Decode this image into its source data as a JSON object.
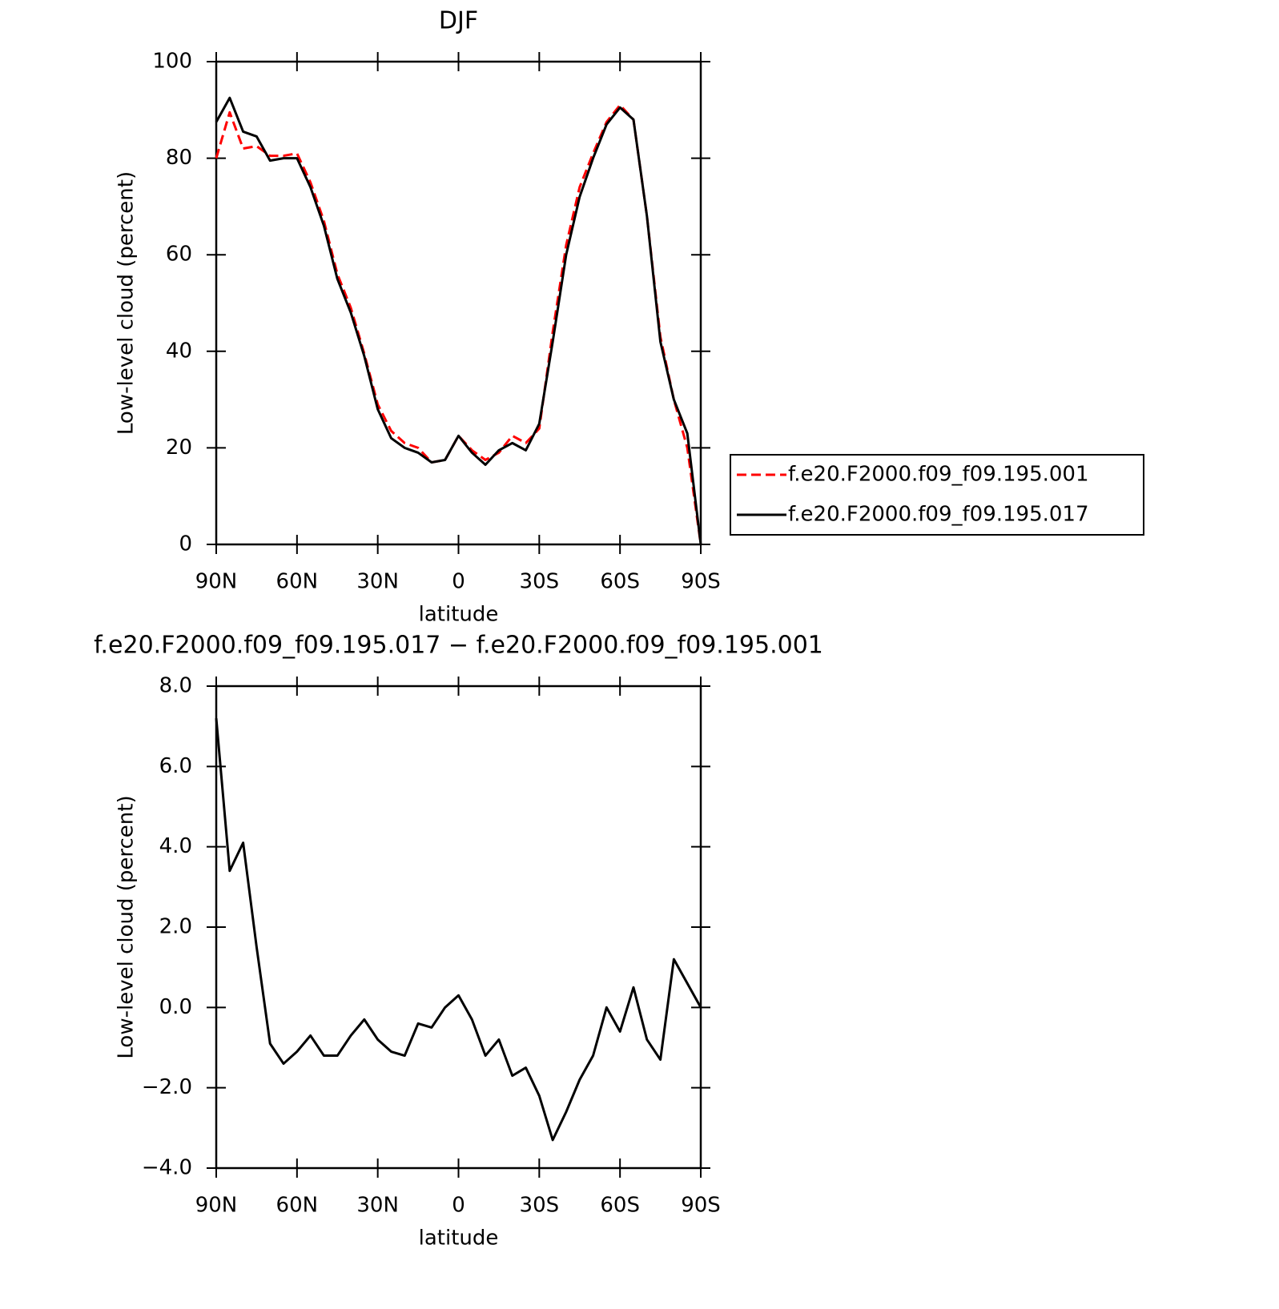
{
  "chart_data": [
    {
      "type": "line",
      "title": "DJF",
      "xlabel": "latitude",
      "ylabel": "Low-level cloud (percent)",
      "x": [
        90,
        85,
        80,
        75,
        70,
        65,
        60,
        55,
        50,
        45,
        40,
        35,
        30,
        25,
        20,
        15,
        10,
        5,
        0,
        -5,
        -10,
        -15,
        -20,
        -25,
        -30,
        -35,
        -40,
        -45,
        -50,
        -55,
        -60,
        -65,
        -70,
        -75,
        -80,
        -85,
        -90
      ],
      "series": [
        {
          "name": "f.e20.F2000.f09_f09.195.001",
          "color": "#ff0000",
          "style": "dashed",
          "values": [
            80,
            89.5,
            82,
            82.5,
            80.5,
            80.5,
            81,
            75,
            67,
            56,
            49,
            39.5,
            29,
            23.5,
            21,
            20,
            17,
            17.5,
            22.5,
            19.5,
            17.5,
            19,
            22.5,
            21,
            24,
            44,
            62,
            74,
            81,
            87.5,
            91,
            88,
            68,
            43,
            30,
            20,
            0
          ]
        },
        {
          "name": "f.e20.F2000.f09_f09.195.017",
          "color": "#000000",
          "style": "solid",
          "values": [
            87.5,
            92.5,
            85.5,
            84.5,
            79.5,
            80,
            80,
            74,
            66,
            55,
            48,
            39,
            28,
            22,
            20,
            19,
            17,
            17.5,
            22.5,
            19,
            16.5,
            19.5,
            21,
            19.5,
            25,
            42,
            60,
            72,
            80,
            87,
            90.5,
            88,
            68,
            42,
            30,
            23,
            0
          ]
        }
      ],
      "xlim": [
        90,
        -90
      ],
      "xticks": [
        {
          "value": 90,
          "label": "90N"
        },
        {
          "value": 60,
          "label": "60N"
        },
        {
          "value": 30,
          "label": "30N"
        },
        0,
        {
          "value": -30,
          "label": "30S"
        },
        {
          "value": -60,
          "label": "60S"
        },
        {
          "value": -90,
          "label": "90S"
        }
      ],
      "ylim": [
        0,
        100
      ],
      "yticks": [
        0,
        20,
        40,
        60,
        80,
        100
      ],
      "legend": "right"
    },
    {
      "type": "line",
      "title": "f.e20.F2000.f09_f09.195.017 − f.e20.F2000.f09_f09.195.001",
      "xlabel": "latitude",
      "ylabel": "Low-level cloud (percent)",
      "x": [
        90,
        85,
        80,
        75,
        70,
        65,
        60,
        55,
        50,
        45,
        40,
        35,
        30,
        25,
        20,
        15,
        10,
        5,
        0,
        -5,
        -10,
        -15,
        -20,
        -25,
        -30,
        -35,
        -40,
        -45,
        -50,
        -55,
        -60,
        -65,
        -70,
        -75,
        -80,
        -85,
        -90
      ],
      "color": "#000000",
      "values": [
        7.2,
        3.4,
        4.1,
        1.5,
        -0.9,
        -1.4,
        -1.1,
        -0.7,
        -1.2,
        -1.2,
        -0.7,
        -0.3,
        -0.8,
        -1.1,
        -1.2,
        -0.4,
        -0.5,
        0,
        0.3,
        -0.3,
        -1.2,
        -0.8,
        -1.7,
        -1.5,
        -2.2,
        -3.3,
        -2.6,
        -1.8,
        -1.2,
        0,
        -0.6,
        0.5,
        -0.8,
        -1.3,
        1.2,
        0.6,
        0
      ],
      "xlim": [
        90,
        -90
      ],
      "xticks": [
        {
          "value": 90,
          "label": "90N"
        },
        {
          "value": 60,
          "label": "60N"
        },
        {
          "value": 30,
          "label": "30N"
        },
        0,
        {
          "value": -30,
          "label": "30S"
        },
        {
          "value": -60,
          "label": "60S"
        },
        {
          "value": -90,
          "label": "90S"
        }
      ],
      "ylim": [
        -4,
        8
      ],
      "yticks": [
        {
          "value": -4,
          "label": "−4.0"
        },
        {
          "value": -2,
          "label": "−2.0"
        },
        {
          "value": 0,
          "label": "0.0"
        },
        {
          "value": 2,
          "label": "2.0"
        },
        {
          "value": 4,
          "label": "4.0"
        },
        {
          "value": 6,
          "label": "6.0"
        },
        {
          "value": 8,
          "label": "8.0"
        }
      ]
    }
  ]
}
